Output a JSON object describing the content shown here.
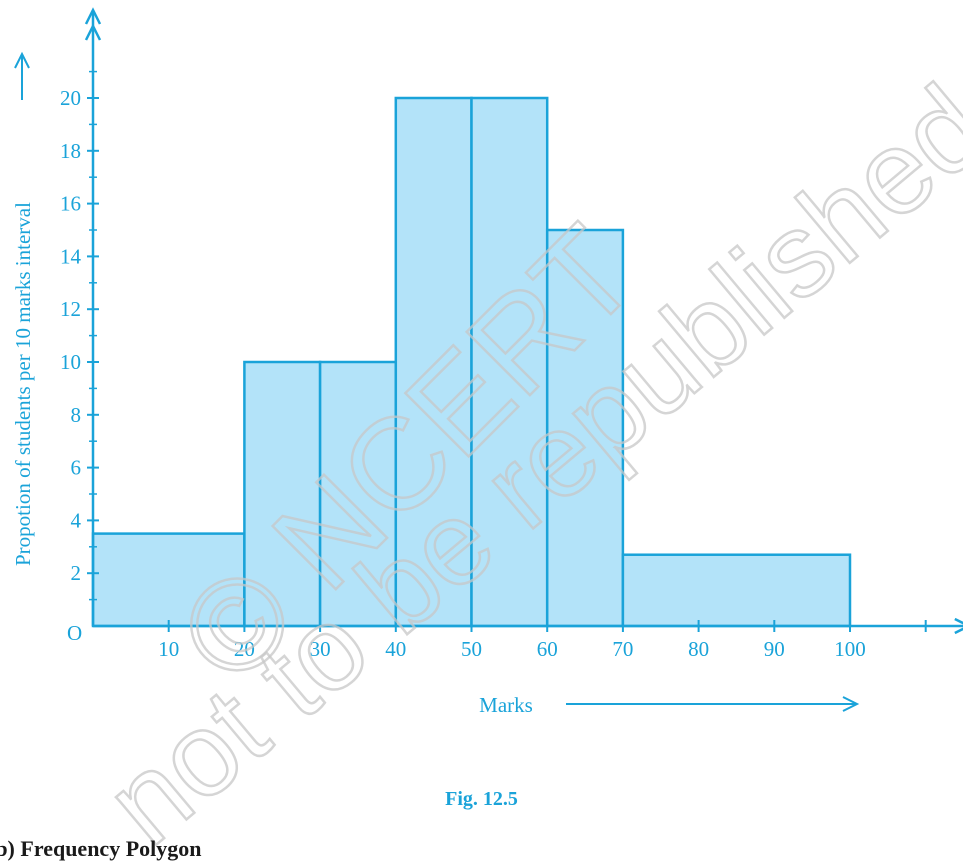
{
  "colors": {
    "accent": "#1aa3d9",
    "bar_fill": "#b3e3f9",
    "watermark": "#c8c8c8"
  },
  "chart_data": {
    "type": "bar",
    "subtype": "histogram",
    "bins": [
      {
        "from": 0,
        "to": 20,
        "value": 3.5
      },
      {
        "from": 20,
        "to": 30,
        "value": 10
      },
      {
        "from": 30,
        "to": 40,
        "value": 10
      },
      {
        "from": 40,
        "to": 50,
        "value": 20
      },
      {
        "from": 50,
        "to": 60,
        "value": 20
      },
      {
        "from": 60,
        "to": 70,
        "value": 15
      },
      {
        "from": 70,
        "to": 100,
        "value": 2.7
      }
    ],
    "xlabel": "Marks",
    "ylabel": "Propotion of students per 10 marks interval",
    "origin_label": "O",
    "xticks": [
      "10",
      "20",
      "30",
      "40",
      "50",
      "60",
      "70",
      "80",
      "90",
      "100"
    ],
    "yticks": [
      "2",
      "4",
      "6",
      "8",
      "10",
      "12",
      "14",
      "16",
      "18",
      "20"
    ],
    "xlim": [
      0,
      112
    ],
    "ylim": [
      0,
      22
    ],
    "grid": false,
    "legend": "none"
  },
  "caption": "Fig. 12.5",
  "section_heading": "(b) Frequency Polygon",
  "watermark": {
    "line1": "© NCERT",
    "line2": "not to be republished"
  }
}
